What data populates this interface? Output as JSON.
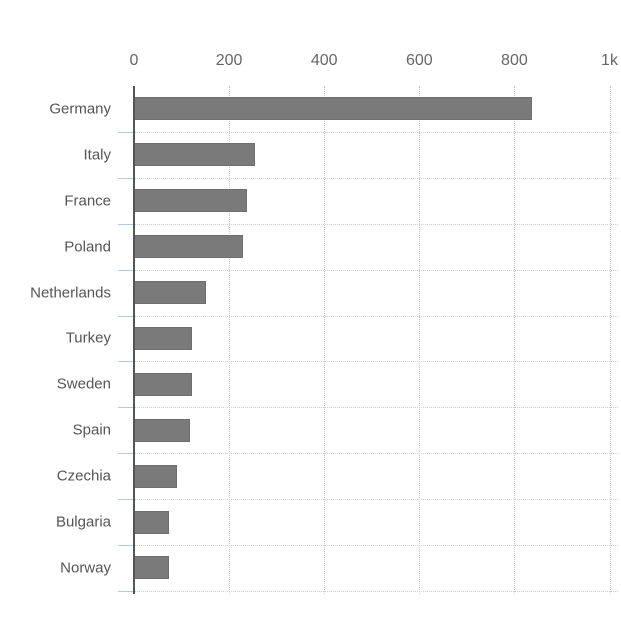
{
  "chart_data": {
    "type": "bar",
    "orientation": "horizontal",
    "title": "",
    "xlabel": "",
    "ylabel": "",
    "xlim": [
      0,
      1000
    ],
    "x_ticks": [
      "0",
      "200",
      "400",
      "600",
      "800",
      "1k"
    ],
    "x_tick_values": [
      0,
      200,
      400,
      600,
      800,
      1000
    ],
    "grid": true,
    "categories": [
      "Germany",
      "Italy",
      "France",
      "Poland",
      "Netherlands",
      "Turkey",
      "Sweden",
      "Spain",
      "Czechia",
      "Bulgaria",
      "Norway"
    ],
    "values": [
      836,
      255,
      238,
      230,
      152,
      122,
      122,
      118,
      91,
      74,
      74
    ],
    "bar_color": "#7a7a7a"
  }
}
